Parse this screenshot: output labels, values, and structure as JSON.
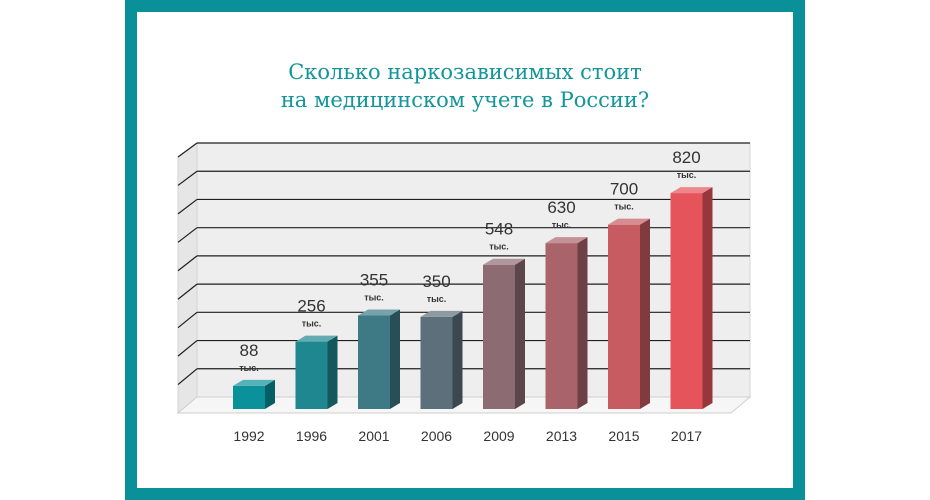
{
  "chart_data": {
    "type": "bar",
    "title_line1": "Сколько наркозависимых стоит",
    "title_line2": "на медицинском учете в России?",
    "categories": [
      "1992",
      "1996",
      "2001",
      "2006",
      "2009",
      "2013",
      "2015",
      "2017"
    ],
    "values": [
      88,
      256,
      355,
      350,
      548,
      630,
      700,
      820
    ],
    "value_labels": [
      "88",
      "256",
      "355",
      "350",
      "548",
      "630",
      "700",
      "820"
    ],
    "unit": "тыс.",
    "colors": [
      "#0a919a",
      "#1f8790",
      "#3d7a86",
      "#5d6f7a",
      "#8c6b73",
      "#a9636b",
      "#c65b62",
      "#e5545a"
    ],
    "ylim": [
      0,
      900
    ],
    "grid": true,
    "legend": "none"
  }
}
